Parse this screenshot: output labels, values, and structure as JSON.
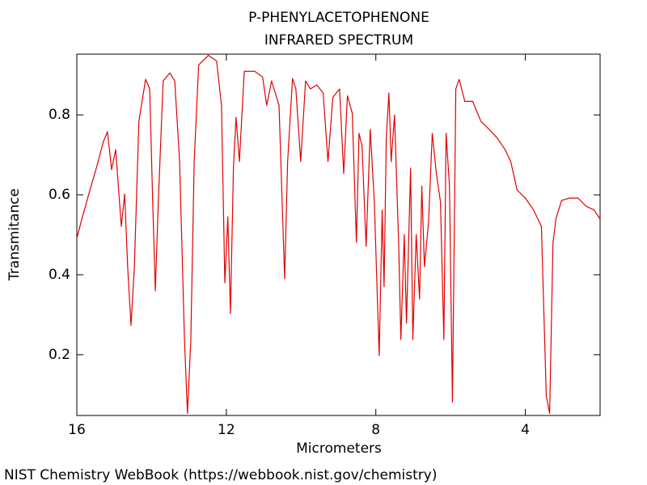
{
  "chart_data": {
    "type": "line",
    "title": "P-PHENYLACETOPHENONE",
    "subtitle": "INFRARED SPECTRUM",
    "x_label": "Micrometers",
    "y_label": "Transmitance",
    "source": "NIST Chemistry WebBook (https://webbook.nist.gov/chemistry)",
    "color": "#e00000",
    "xlim": [
      16,
      2
    ],
    "ylim": [
      0.048,
      0.952
    ],
    "xticks": [
      16,
      12,
      8,
      4
    ],
    "yticks": [
      0.2,
      0.4,
      0.6,
      0.8
    ],
    "x": [
      16.0,
      15.89,
      15.68,
      15.46,
      15.29,
      15.18,
      15.07,
      14.96,
      14.81,
      14.72,
      14.64,
      14.55,
      14.46,
      14.34,
      14.16,
      14.05,
      13.97,
      13.9,
      13.82,
      13.69,
      13.51,
      13.38,
      13.25,
      13.12,
      13.04,
      12.95,
      12.86,
      12.74,
      12.48,
      12.26,
      12.13,
      12.04,
      11.96,
      11.89,
      11.81,
      11.74,
      11.65,
      11.52,
      11.24,
      11.03,
      10.92,
      10.79,
      10.59,
      10.44,
      10.36,
      10.23,
      10.14,
      10.01,
      9.88,
      9.75,
      9.58,
      9.41,
      9.28,
      9.15,
      8.97,
      8.86,
      8.76,
      8.63,
      8.52,
      8.45,
      8.37,
      8.26,
      8.15,
      8.04,
      7.91,
      7.83,
      7.78,
      7.72,
      7.65,
      7.59,
      7.5,
      7.39,
      7.33,
      7.24,
      7.18,
      7.07,
      7.01,
      6.92,
      6.83,
      6.77,
      6.7,
      6.59,
      6.49,
      6.38,
      6.27,
      6.18,
      6.12,
      6.03,
      5.95,
      5.86,
      5.77,
      5.62,
      5.41,
      5.19,
      4.97,
      4.76,
      4.54,
      4.39,
      4.22,
      4.0,
      3.78,
      3.57,
      3.44,
      3.35,
      3.26,
      3.18,
      3.03,
      2.81,
      2.59,
      2.38,
      2.16,
      2.01
    ],
    "values": [
      0.491,
      0.531,
      0.602,
      0.673,
      0.733,
      0.758,
      0.663,
      0.713,
      0.521,
      0.602,
      0.42,
      0.273,
      0.42,
      0.784,
      0.889,
      0.865,
      0.582,
      0.36,
      0.582,
      0.885,
      0.905,
      0.885,
      0.683,
      0.238,
      0.053,
      0.238,
      0.683,
      0.925,
      0.949,
      0.935,
      0.824,
      0.38,
      0.545,
      0.303,
      0.667,
      0.794,
      0.683,
      0.909,
      0.909,
      0.895,
      0.824,
      0.885,
      0.824,
      0.39,
      0.683,
      0.891,
      0.865,
      0.683,
      0.885,
      0.865,
      0.875,
      0.855,
      0.683,
      0.844,
      0.865,
      0.653,
      0.848,
      0.804,
      0.481,
      0.754,
      0.723,
      0.471,
      0.764,
      0.582,
      0.198,
      0.562,
      0.37,
      0.743,
      0.855,
      0.683,
      0.8,
      0.481,
      0.238,
      0.501,
      0.279,
      0.667,
      0.238,
      0.501,
      0.339,
      0.622,
      0.42,
      0.531,
      0.754,
      0.653,
      0.582,
      0.238,
      0.754,
      0.622,
      0.081,
      0.865,
      0.889,
      0.834,
      0.834,
      0.784,
      0.764,
      0.743,
      0.713,
      0.683,
      0.612,
      0.592,
      0.562,
      0.521,
      0.097,
      0.053,
      0.481,
      0.541,
      0.586,
      0.592,
      0.592,
      0.572,
      0.562,
      0.541
    ]
  }
}
